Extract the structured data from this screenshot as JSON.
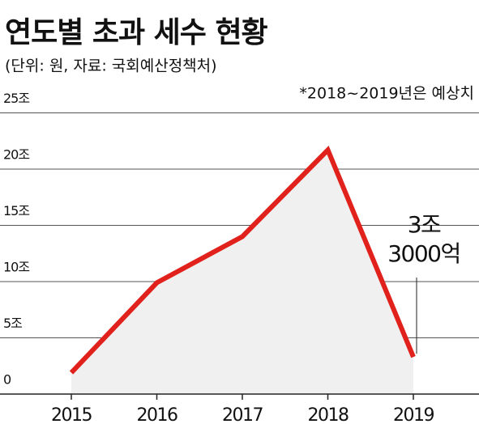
{
  "chart_data": {
    "type": "line",
    "title": "연도별 초과 세수 현황",
    "subtitle": "(단위: 원, 자료: 국회예산정책처)",
    "note": "*2018~2019년은 예상치",
    "categories": [
      "2015",
      "2016",
      "2017",
      "2018",
      "2019"
    ],
    "values": [
      1.9,
      9.9,
      14.0,
      21.7,
      3.3
    ],
    "value_labels": [
      null,
      null,
      null,
      null,
      "3조 3000억"
    ],
    "color": "#e1211c",
    "area_color": "#f0f0f0",
    "ylim": [
      0,
      25
    ],
    "yticks": [
      {
        "value": 0,
        "label": "0"
      },
      {
        "value": 5,
        "label": "5조"
      },
      {
        "value": 10,
        "label": "10조"
      },
      {
        "value": 15,
        "label": "15조"
      },
      {
        "value": 20,
        "label": "20조"
      },
      {
        "value": 25,
        "label": "25조"
      }
    ],
    "grid": true
  }
}
